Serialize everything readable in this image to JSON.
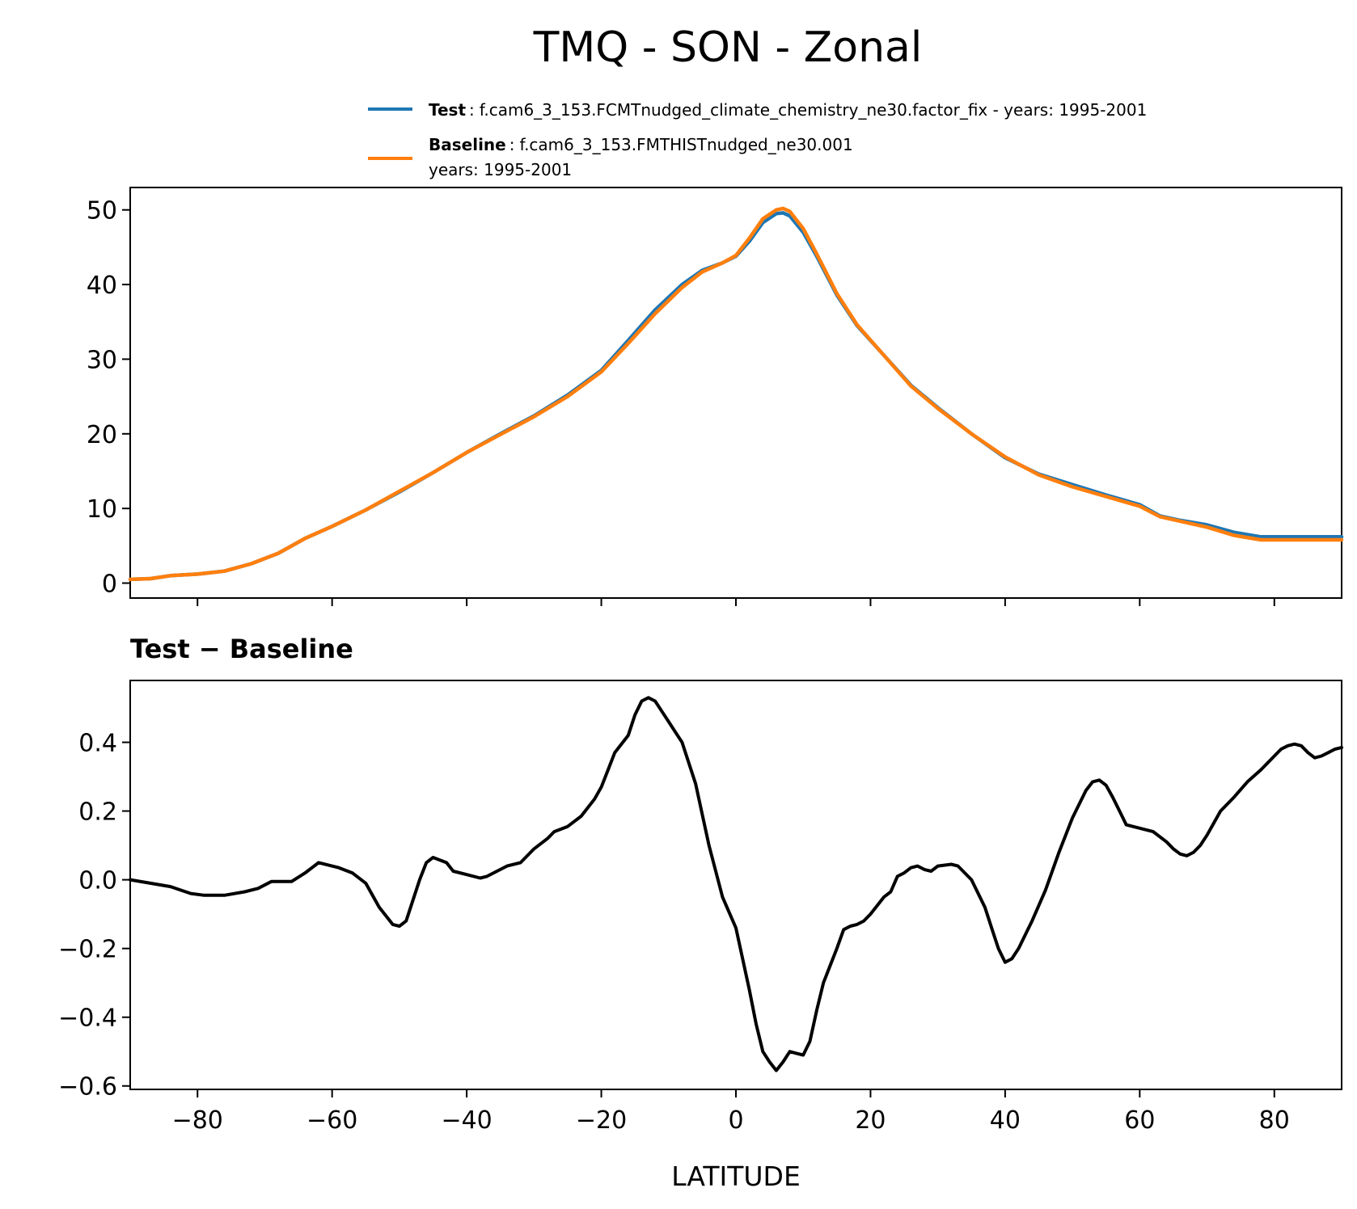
{
  "title": "TMQ - SON - Zonal",
  "legend": [
    {
      "label": "Test",
      "text": "f.cam6_3_153.FCMTnudged_climate_chemistry_ne30.factor_fix - years: 1995-2001",
      "color": "#1f77b4"
    },
    {
      "label": "Baseline",
      "text": "f.cam6_3_153.FMTHISTnudged_ne30.001",
      "text2": "years: 1995-2001",
      "color": "#ff7f0e"
    }
  ],
  "diff_title": "Test − Baseline",
  "xlabel": "LATITUDE",
  "chart_data": [
    {
      "type": "line",
      "xlim": [
        -90,
        90
      ],
      "ylim": [
        -2,
        53
      ],
      "yticks": [
        0,
        10,
        20,
        30,
        40,
        50
      ],
      "ytick_labels": [
        "0",
        "10",
        "20",
        "30",
        "40",
        "50"
      ],
      "xticks": [
        -80,
        -60,
        -40,
        -20,
        0,
        20,
        40,
        60,
        80
      ],
      "show_xtick_labels": false,
      "x": [
        -90,
        -87,
        -84,
        -80,
        -76,
        -72,
        -68,
        -64,
        -60,
        -55,
        -50,
        -45,
        -40,
        -35,
        -30,
        -25,
        -20,
        -16,
        -12,
        -8,
        -5,
        -2,
        0,
        2,
        4,
        6,
        7,
        8,
        10,
        12,
        15,
        18,
        22,
        26,
        30,
        35,
        40,
        45,
        50,
        55,
        60,
        63,
        66,
        70,
        74,
        78,
        82,
        86,
        90
      ],
      "series": [
        {
          "name": "Test",
          "color": "#1f77b4",
          "values": [
            0.5,
            0.6,
            1.0,
            1.2,
            1.6,
            2.6,
            4.0,
            6.0,
            7.6,
            9.8,
            12.2,
            14.8,
            17.5,
            20.0,
            22.4,
            25.2,
            28.5,
            32.5,
            36.6,
            40.0,
            41.9,
            42.9,
            43.8,
            45.8,
            48.3,
            49.5,
            49.6,
            49.2,
            47.0,
            43.8,
            38.6,
            34.5,
            30.5,
            26.5,
            23.5,
            20.0,
            16.8,
            14.6,
            13.2,
            11.8,
            10.5,
            9.0,
            8.4,
            7.8,
            6.8,
            6.2,
            6.2,
            6.2,
            6.2
          ]
        },
        {
          "name": "Baseline",
          "color": "#ff7f0e",
          "values": [
            0.5,
            0.6,
            1.0,
            1.2,
            1.6,
            2.6,
            4.0,
            6.0,
            7.6,
            9.8,
            12.3,
            14.8,
            17.5,
            19.9,
            22.3,
            25.0,
            28.3,
            32.1,
            36.1,
            39.6,
            41.7,
            42.9,
            43.9,
            46.2,
            48.8,
            50.0,
            50.2,
            49.8,
            47.5,
            44.1,
            38.8,
            34.6,
            30.5,
            26.4,
            23.4,
            20.0,
            16.9,
            14.5,
            12.9,
            11.6,
            10.3,
            8.9,
            8.3,
            7.5,
            6.4,
            5.8,
            5.8,
            5.8,
            5.8
          ]
        }
      ]
    },
    {
      "type": "line",
      "title": "Test − Baseline",
      "xlabel": "LATITUDE",
      "xlim": [
        -90,
        90
      ],
      "ylim": [
        -0.61,
        0.58
      ],
      "yticks": [
        -0.6,
        -0.4,
        -0.2,
        0.0,
        0.2,
        0.4
      ],
      "ytick_labels": [
        "−0.6",
        "−0.4",
        "−0.2",
        "0.0",
        "0.2",
        "0.4"
      ],
      "xticks": [
        -80,
        -60,
        -40,
        -20,
        0,
        20,
        40,
        60,
        80
      ],
      "xtick_labels": [
        "−80",
        "−60",
        "−40",
        "−20",
        "0",
        "20",
        "40",
        "60",
        "80"
      ],
      "series": [
        {
          "name": "Test − Baseline",
          "color": "#000000",
          "x": [
            -90,
            -87,
            -84,
            -81,
            -79,
            -76,
            -73,
            -71,
            -69,
            -66,
            -64,
            -62,
            -59,
            -57,
            -55,
            -53,
            -51,
            -50,
            -49,
            -47,
            -46,
            -45,
            -43,
            -42,
            -40,
            -38,
            -37,
            -35,
            -34,
            -32,
            -30,
            -28,
            -27,
            -25,
            -23,
            -21,
            -20,
            -19,
            -18,
            -16,
            -15,
            -14,
            -13,
            -12,
            -11,
            -10,
            -9,
            -8,
            -6,
            -4,
            -2,
            0,
            2,
            3,
            4,
            5,
            6,
            7,
            8,
            9,
            10,
            11,
            12,
            13,
            14,
            15,
            16,
            17,
            18,
            19,
            20,
            22,
            23,
            24,
            25,
            26,
            27,
            28,
            29,
            30,
            32,
            33,
            35,
            36,
            37,
            38,
            39,
            40,
            41,
            42,
            44,
            46,
            48,
            50,
            52,
            53,
            54,
            55,
            56,
            57,
            58,
            60,
            62,
            64,
            65,
            66,
            67,
            68,
            69,
            70,
            71,
            72,
            74,
            76,
            78,
            80,
            81,
            82,
            83,
            84,
            85,
            86,
            87,
            88,
            89,
            90
          ],
          "values": [
            0.0,
            -0.01,
            -0.02,
            -0.04,
            -0.045,
            -0.045,
            -0.035,
            -0.025,
            -0.005,
            -0.005,
            0.02,
            0.05,
            0.035,
            0.02,
            -0.01,
            -0.08,
            -0.13,
            -0.135,
            -0.12,
            0.0,
            0.05,
            0.065,
            0.05,
            0.025,
            0.015,
            0.005,
            0.01,
            0.03,
            0.04,
            0.05,
            0.09,
            0.12,
            0.14,
            0.155,
            0.185,
            0.235,
            0.27,
            0.32,
            0.37,
            0.42,
            0.48,
            0.52,
            0.53,
            0.52,
            0.49,
            0.46,
            0.43,
            0.4,
            0.28,
            0.1,
            -0.05,
            -0.14,
            -0.32,
            -0.42,
            -0.5,
            -0.53,
            -0.555,
            -0.53,
            -0.5,
            -0.505,
            -0.51,
            -0.47,
            -0.38,
            -0.3,
            -0.25,
            -0.2,
            -0.145,
            -0.135,
            -0.13,
            -0.12,
            -0.1,
            -0.05,
            -0.035,
            0.01,
            0.02,
            0.035,
            0.04,
            0.03,
            0.025,
            0.04,
            0.045,
            0.04,
            0.0,
            -0.04,
            -0.08,
            -0.14,
            -0.2,
            -0.24,
            -0.23,
            -0.2,
            -0.12,
            -0.03,
            0.08,
            0.18,
            0.26,
            0.285,
            0.29,
            0.275,
            0.24,
            0.2,
            0.16,
            0.15,
            0.14,
            0.11,
            0.09,
            0.075,
            0.07,
            0.08,
            0.1,
            0.13,
            0.165,
            0.2,
            0.24,
            0.285,
            0.32,
            0.36,
            0.38,
            0.39,
            0.395,
            0.39,
            0.37,
            0.355,
            0.36,
            0.37,
            0.38,
            0.385
          ]
        }
      ]
    }
  ]
}
